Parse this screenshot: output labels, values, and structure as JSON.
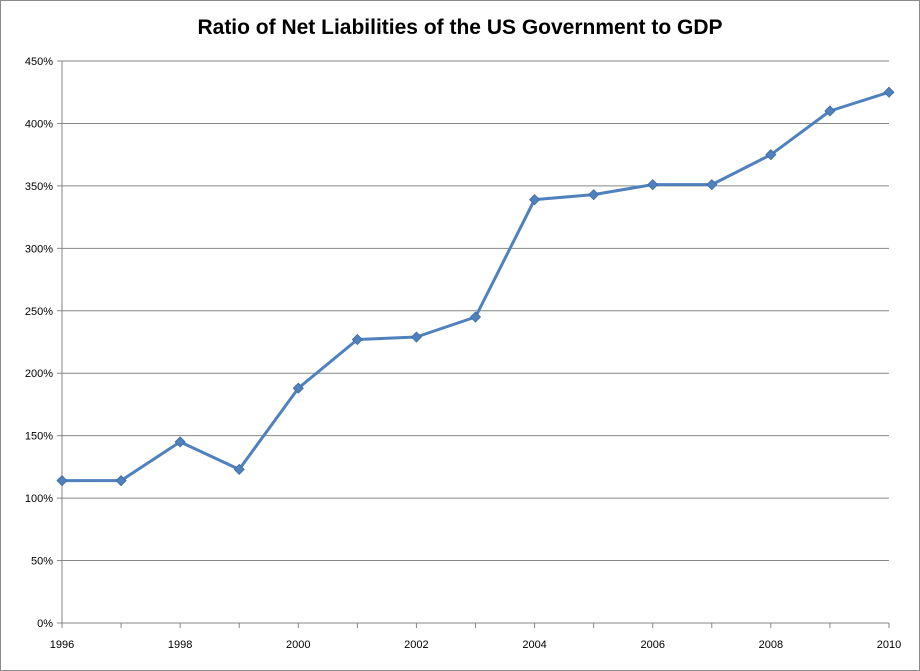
{
  "chart_data": {
    "type": "line",
    "title": "Ratio of Net Liabilities of the US Government to GDP",
    "xlabel": "",
    "ylabel": "",
    "x": [
      1996,
      1997,
      1998,
      1999,
      2000,
      2001,
      2002,
      2003,
      2004,
      2005,
      2006,
      2007,
      2008,
      2009,
      2010
    ],
    "series": [
      {
        "name": "",
        "values": [
          114,
          114,
          145,
          123,
          188,
          227,
          229,
          245,
          339,
          343,
          351,
          351,
          375,
          410,
          425
        ],
        "color": "#4f81bd"
      }
    ],
    "xlim": [
      1996,
      2010
    ],
    "ylim": [
      0,
      450
    ],
    "x_ticks": [
      "1996",
      "1998",
      "2000",
      "2002",
      "2004",
      "2006",
      "2008",
      "2010"
    ],
    "y_ticks": [
      "0%",
      "50%",
      "100%",
      "150%",
      "200%",
      "250%",
      "300%",
      "350%",
      "400%",
      "450%"
    ],
    "grid": "horizontal",
    "legend": "none",
    "marker": "diamond"
  }
}
